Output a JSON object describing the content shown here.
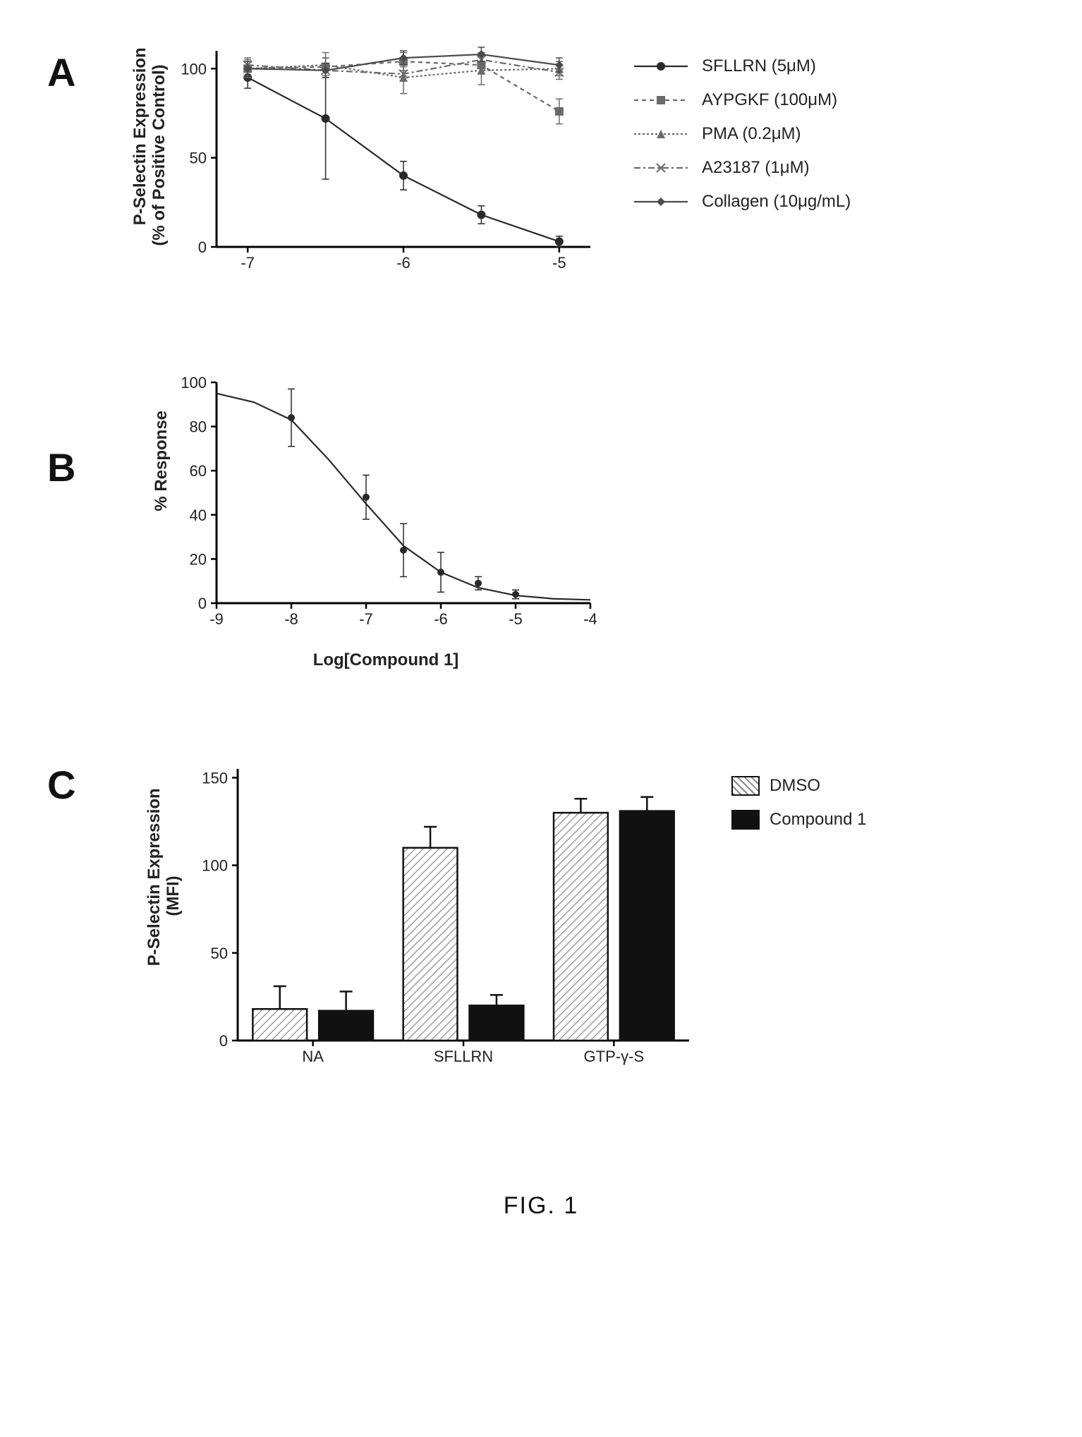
{
  "figure_caption": "FIG. 1",
  "panelA": {
    "label": "A",
    "type": "line",
    "ylabel": "P-Selectin Expression\n(% of Positive Control)",
    "x_values_log": [
      -7,
      -6.5,
      -6,
      -5.5,
      -5
    ],
    "xlim": [
      -7.2,
      -4.8
    ],
    "ylim": [
      0,
      110
    ],
    "yticks": [
      0,
      50,
      100
    ],
    "ytick_labels": [
      "0",
      "50",
      "100"
    ],
    "xticks": [
      -7,
      -6,
      -5
    ],
    "xtick_labels": [
      "-7",
      "-6",
      "-5"
    ],
    "label_fontsize": 24,
    "tick_fontsize": 22,
    "axis_color": "#000000",
    "line_width": 2.2,
    "marker_size": 6,
    "series": [
      {
        "name": "SFLLRN (5μM)",
        "color": "#2a2a2a",
        "dash": "",
        "marker": "circle",
        "y": [
          95,
          72,
          40,
          18,
          3
        ],
        "err": [
          6,
          34,
          8,
          5,
          3
        ]
      },
      {
        "name": "AYPGKF (100μM)",
        "color": "#6b6b6b",
        "dash": "6 5",
        "marker": "square",
        "y": [
          100,
          101,
          104,
          102,
          76
        ],
        "err": [
          5,
          5,
          5,
          5,
          7
        ]
      },
      {
        "name": "PMA (0.2μM)",
        "color": "#6b6b6b",
        "dash": "3 3",
        "marker": "triangle",
        "y": [
          100,
          102,
          95,
          99,
          100
        ],
        "err": [
          4,
          7,
          9,
          8,
          4
        ]
      },
      {
        "name": "A23187 (1μM)",
        "color": "#6b6b6b",
        "dash": "9 4 3 4",
        "marker": "cross",
        "y": [
          102,
          99,
          97,
          105,
          98
        ],
        "err": [
          4,
          4,
          4,
          4,
          4
        ]
      },
      {
        "name": "Collagen (10μg/mL)",
        "color": "#4a4a4a",
        "dash": "",
        "marker": "diamond",
        "y": [
          100,
          99,
          106,
          108,
          102
        ],
        "err": [
          4,
          4,
          4,
          4,
          4
        ]
      }
    ]
  },
  "panelB": {
    "label": "B",
    "type": "line",
    "xlabel": "Log[Compound 1]",
    "ylabel": "% Response",
    "x_values_log": [
      -8,
      -7,
      -6.5,
      -6,
      -5.5,
      -5
    ],
    "xlim": [
      -9,
      -4
    ],
    "ylim": [
      0,
      100
    ],
    "yticks": [
      0,
      20,
      40,
      60,
      80,
      100
    ],
    "ytick_labels": [
      "0",
      "20",
      "40",
      "60",
      "80",
      "100"
    ],
    "xticks": [
      -9,
      -8,
      -7,
      -6,
      -5,
      -4
    ],
    "xtick_labels": [
      "-9",
      "-8",
      "-7",
      "-6",
      "-5",
      "-4"
    ],
    "label_fontsize": 24,
    "tick_fontsize": 22,
    "axis_color": "#000000",
    "line_width": 2.2,
    "series": [
      {
        "name": "response",
        "color": "#2a2a2a",
        "dash": "",
        "marker": "circle",
        "y": [
          84,
          48,
          24,
          14,
          9,
          4
        ],
        "err": [
          13,
          10,
          12,
          9,
          3,
          2
        ]
      }
    ],
    "curve": {
      "comment": "sigmoidal fit sampled",
      "color": "#2a2a2a",
      "points": [
        [
          -9,
          95
        ],
        [
          -8.5,
          91
        ],
        [
          -8,
          83
        ],
        [
          -7.5,
          65
        ],
        [
          -7,
          45
        ],
        [
          -6.5,
          26
        ],
        [
          -6,
          14
        ],
        [
          -5.5,
          7
        ],
        [
          -5,
          3.5
        ],
        [
          -4.5,
          2
        ],
        [
          -4,
          1.5
        ]
      ]
    }
  },
  "panelC": {
    "label": "C",
    "type": "bar",
    "ylabel": "P-Selectin Expression\n(MFI)",
    "categories": [
      "NA",
      "SFLLRN",
      "GTP-γ-S"
    ],
    "groups": [
      {
        "name": "DMSO",
        "fill_kind": "hatched",
        "fill_color": "#ffffff",
        "hatch_color": "#8a8a8a",
        "border_color": "#111111",
        "values": [
          18,
          110,
          130
        ],
        "err": [
          13,
          12,
          8
        ]
      },
      {
        "name": "Compound 1",
        "fill_kind": "solid",
        "fill_color": "#111111",
        "border_color": "#111111",
        "values": [
          17,
          20,
          131
        ],
        "err": [
          11,
          6,
          8
        ]
      }
    ],
    "xlim_cats": 3,
    "ylim": [
      0,
      155
    ],
    "yticks": [
      0,
      50,
      100,
      150
    ],
    "ytick_labels": [
      "0",
      "50",
      "100",
      "150"
    ],
    "label_fontsize": 24,
    "tick_fontsize": 22,
    "axis_color": "#000000",
    "bar_width": 0.36,
    "group_gap": 0.08,
    "legend": [
      "DMSO",
      "Compound 1"
    ]
  }
}
